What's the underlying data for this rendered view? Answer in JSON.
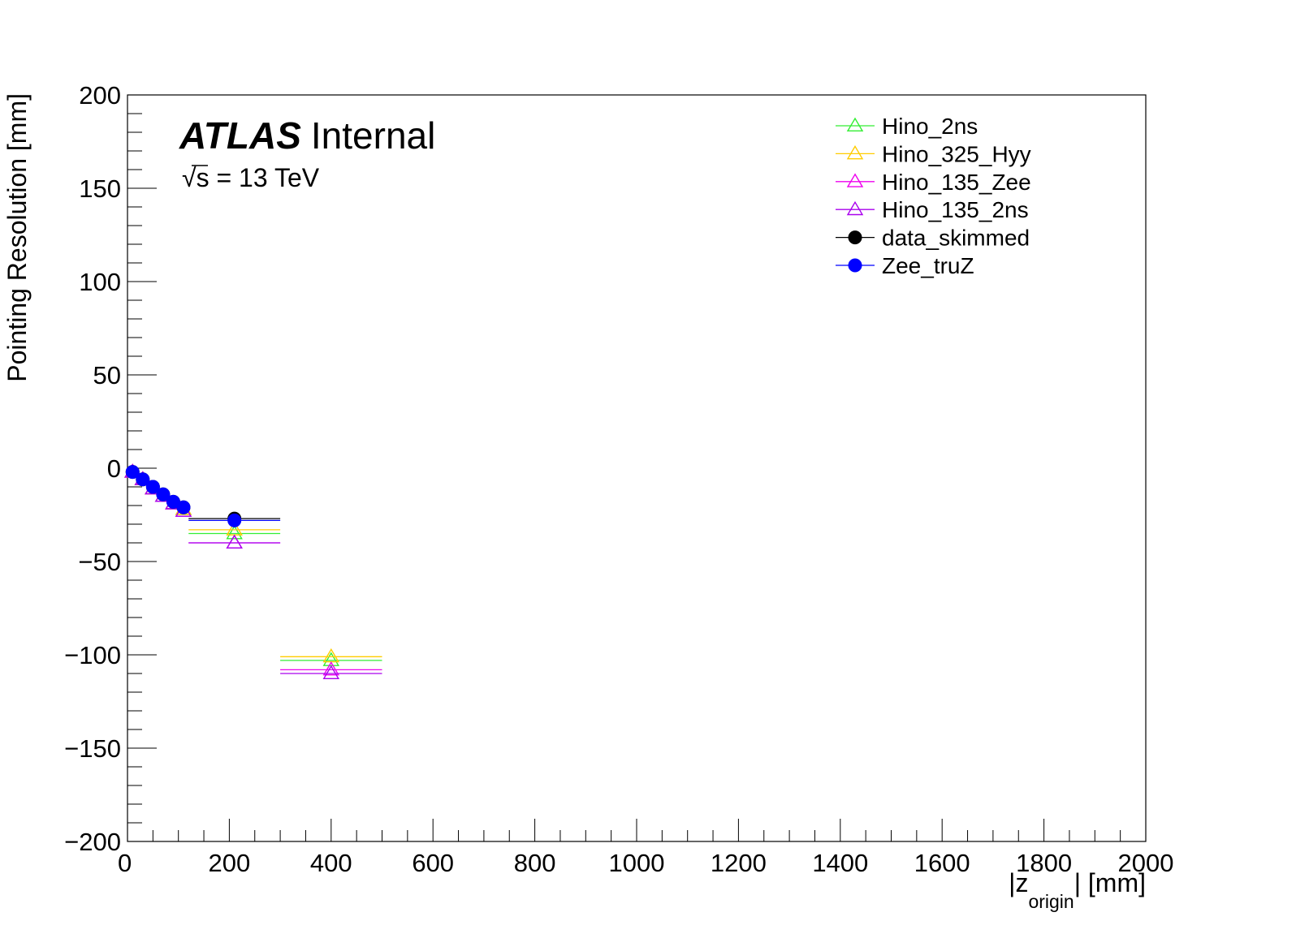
{
  "chart_data": {
    "type": "scatter",
    "title": "",
    "xlabel": "|z",
    "xlabel_sub": "origin",
    "xlabel_suffix": "| [mm]",
    "ylabel": "Pointing Resolution [mm]",
    "xlim": [
      0,
      2000
    ],
    "ylim": [
      -200,
      200
    ],
    "x_ticks": [
      "0",
      "200",
      "400",
      "600",
      "800",
      "1000",
      "1200",
      "1400",
      "1600",
      "1800",
      "2000"
    ],
    "y_ticks": [
      "200",
      "150",
      "100",
      "50",
      "0",
      "−50",
      "−100",
      "−150",
      "−200"
    ],
    "grid": false,
    "legend_position": "top-right",
    "annotations": {
      "atlas_bold": "ATLAS",
      "atlas_label": "Internal",
      "energy_sqrt": "√",
      "energy_text": "s = 13 TeV"
    },
    "series": [
      {
        "name": "Hino_2ns",
        "color": "#33ee33",
        "marker": "open-triangle",
        "points": [
          {
            "x": 10,
            "y": -2,
            "xlo": 0,
            "xhi": 20
          },
          {
            "x": 30,
            "y": -6,
            "xlo": 20,
            "xhi": 40
          },
          {
            "x": 50,
            "y": -11,
            "xlo": 40,
            "xhi": 60
          },
          {
            "x": 70,
            "y": -15,
            "xlo": 60,
            "xhi": 80
          },
          {
            "x": 90,
            "y": -19,
            "xlo": 80,
            "xhi": 100
          },
          {
            "x": 110,
            "y": -22,
            "xlo": 100,
            "xhi": 120
          },
          {
            "x": 210,
            "y": -35,
            "xlo": 120,
            "xhi": 300
          },
          {
            "x": 400,
            "y": -103,
            "xlo": 300,
            "xhi": 500
          }
        ]
      },
      {
        "name": "Hino_325_Hyy",
        "color": "#ffcc00",
        "marker": "open-triangle",
        "points": [
          {
            "x": 10,
            "y": -2,
            "xlo": 0,
            "xhi": 20
          },
          {
            "x": 30,
            "y": -6,
            "xlo": 20,
            "xhi": 40
          },
          {
            "x": 50,
            "y": -11,
            "xlo": 40,
            "xhi": 60
          },
          {
            "x": 70,
            "y": -15,
            "xlo": 60,
            "xhi": 80
          },
          {
            "x": 90,
            "y": -19,
            "xlo": 80,
            "xhi": 100
          },
          {
            "x": 110,
            "y": -22,
            "xlo": 100,
            "xhi": 120
          },
          {
            "x": 210,
            "y": -33,
            "xlo": 120,
            "xhi": 300
          },
          {
            "x": 400,
            "y": -101,
            "xlo": 300,
            "xhi": 500
          }
        ]
      },
      {
        "name": "Hino_135_Zee",
        "color": "#ee00ee",
        "marker": "open-triangle",
        "points": [
          {
            "x": 10,
            "y": -2,
            "xlo": 0,
            "xhi": 20
          },
          {
            "x": 30,
            "y": -6,
            "xlo": 20,
            "xhi": 40
          },
          {
            "x": 50,
            "y": -11,
            "xlo": 40,
            "xhi": 60
          },
          {
            "x": 70,
            "y": -15,
            "xlo": 60,
            "xhi": 80
          },
          {
            "x": 90,
            "y": -19,
            "xlo": 80,
            "xhi": 100
          },
          {
            "x": 110,
            "y": -23,
            "xlo": 100,
            "xhi": 120
          },
          {
            "x": 210,
            "y": -40,
            "xlo": 120,
            "xhi": 300
          },
          {
            "x": 400,
            "y": -108,
            "xlo": 300,
            "xhi": 500
          }
        ]
      },
      {
        "name": "Hino_135_2ns",
        "color": "#aa00ee",
        "marker": "open-triangle",
        "points": [
          {
            "x": 10,
            "y": -2,
            "xlo": 0,
            "xhi": 20
          },
          {
            "x": 30,
            "y": -6,
            "xlo": 20,
            "xhi": 40
          },
          {
            "x": 50,
            "y": -11,
            "xlo": 40,
            "xhi": 60
          },
          {
            "x": 70,
            "y": -15,
            "xlo": 60,
            "xhi": 80
          },
          {
            "x": 90,
            "y": -19,
            "xlo": 80,
            "xhi": 100
          },
          {
            "x": 110,
            "y": -23,
            "xlo": 100,
            "xhi": 120
          },
          {
            "x": 210,
            "y": -40,
            "xlo": 120,
            "xhi": 300
          },
          {
            "x": 400,
            "y": -110,
            "xlo": 300,
            "xhi": 500
          }
        ]
      },
      {
        "name": "data_skimmed",
        "color": "#000000",
        "marker": "filled-circle",
        "points": [
          {
            "x": 10,
            "y": -2,
            "xlo": 0,
            "xhi": 20
          },
          {
            "x": 30,
            "y": -6,
            "xlo": 20,
            "xhi": 40
          },
          {
            "x": 50,
            "y": -10,
            "xlo": 40,
            "xhi": 60
          },
          {
            "x": 70,
            "y": -14,
            "xlo": 60,
            "xhi": 80
          },
          {
            "x": 90,
            "y": -18,
            "xlo": 80,
            "xhi": 100
          },
          {
            "x": 110,
            "y": -21,
            "xlo": 100,
            "xhi": 120
          },
          {
            "x": 210,
            "y": -27,
            "xlo": 120,
            "xhi": 300
          }
        ]
      },
      {
        "name": "Zee_truZ",
        "color": "#0000ff",
        "marker": "filled-circle",
        "points": [
          {
            "x": 10,
            "y": -2,
            "xlo": 0,
            "xhi": 20
          },
          {
            "x": 30,
            "y": -6,
            "xlo": 20,
            "xhi": 40
          },
          {
            "x": 50,
            "y": -10,
            "xlo": 40,
            "xhi": 60
          },
          {
            "x": 70,
            "y": -14,
            "xlo": 60,
            "xhi": 80
          },
          {
            "x": 90,
            "y": -18,
            "xlo": 80,
            "xhi": 100
          },
          {
            "x": 110,
            "y": -21,
            "xlo": 100,
            "xhi": 120
          },
          {
            "x": 210,
            "y": -28,
            "xlo": 120,
            "xhi": 300
          }
        ]
      }
    ]
  }
}
